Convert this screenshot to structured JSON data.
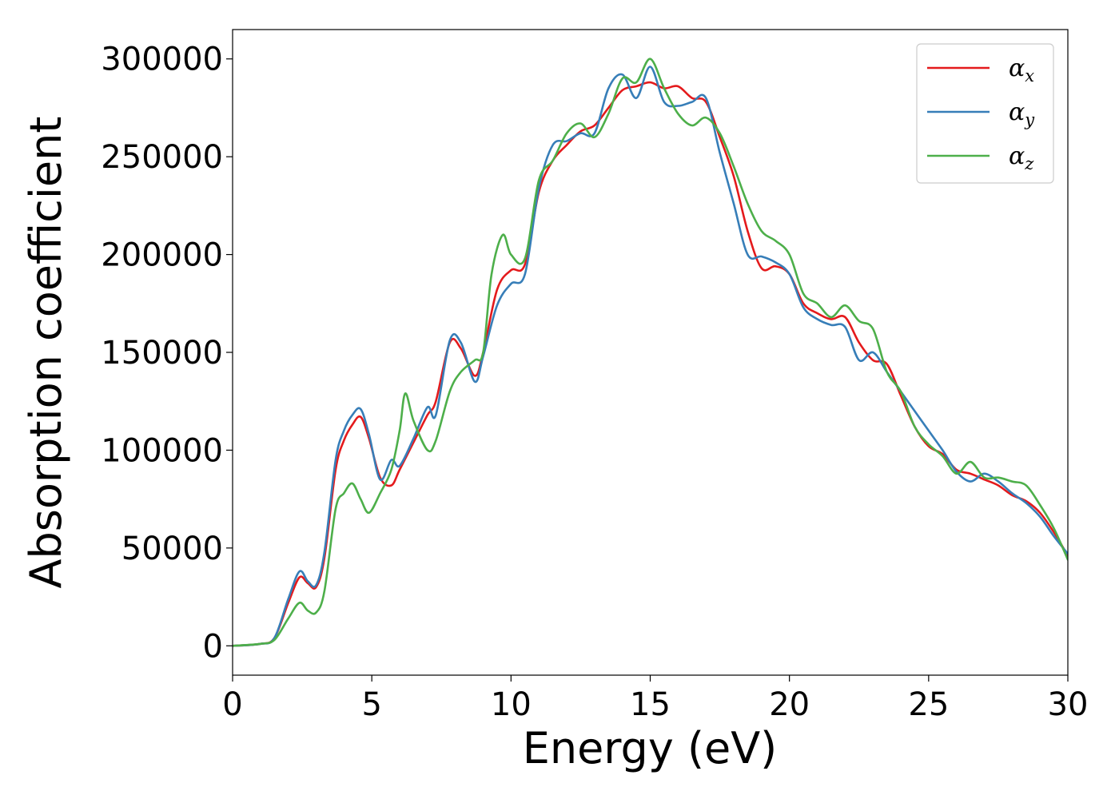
{
  "chart_data": {
    "type": "line",
    "title": "",
    "xlabel": "Energy (eV)",
    "ylabel": "Absorption coefficient",
    "xlim": [
      0,
      30
    ],
    "ylim": [
      -15000,
      315000
    ],
    "xticks": [
      0,
      5,
      10,
      15,
      20,
      25,
      30
    ],
    "yticks": [
      0,
      50000,
      100000,
      150000,
      200000,
      250000,
      300000
    ],
    "grid": false,
    "legend_position": "top-right",
    "series": [
      {
        "name": "αx",
        "symbol": "α",
        "subscript": "x",
        "color": "#e41a1c",
        "x": [
          0,
          1.0,
          1.5,
          2.0,
          2.4,
          2.7,
          3.0,
          3.3,
          3.7,
          4.0,
          4.3,
          4.6,
          4.9,
          5.3,
          5.7,
          6.0,
          6.5,
          7.0,
          7.3,
          7.8,
          8.2,
          8.7,
          9.0,
          9.5,
          10.0,
          10.5,
          11.0,
          11.5,
          12.0,
          12.5,
          13.0,
          13.5,
          14.0,
          14.5,
          15.0,
          15.5,
          16.0,
          16.5,
          17.0,
          17.5,
          18.0,
          18.5,
          19.0,
          19.5,
          20.0,
          20.5,
          21.0,
          21.5,
          22.0,
          22.5,
          23.0,
          23.5,
          24.0,
          24.5,
          25.0,
          25.5,
          26.0,
          26.5,
          27.0,
          27.5,
          28.0,
          28.5,
          29.0,
          29.5,
          30.0
        ],
        "y": [
          0,
          1000,
          4000,
          22000,
          35000,
          32000,
          30000,
          45000,
          90000,
          105000,
          113000,
          117000,
          106000,
          86000,
          82000,
          90000,
          104000,
          118000,
          125000,
          155000,
          152000,
          138000,
          150000,
          182000,
          192000,
          195000,
          232000,
          248000,
          256000,
          263000,
          266000,
          275000,
          284000,
          286000,
          288000,
          285000,
          286000,
          280000,
          278000,
          260000,
          240000,
          212000,
          193000,
          194000,
          190000,
          175000,
          170000,
          167000,
          168000,
          155000,
          146000,
          144000,
          128000,
          112000,
          102000,
          98000,
          90000,
          88000,
          85000,
          82000,
          77000,
          74000,
          68000,
          58000,
          46000
        ]
      },
      {
        "name": "αy",
        "symbol": "α",
        "subscript": "y",
        "color": "#377eb8",
        "x": [
          0,
          1.0,
          1.5,
          2.0,
          2.4,
          2.7,
          3.0,
          3.3,
          3.7,
          4.0,
          4.3,
          4.6,
          4.9,
          5.3,
          5.7,
          6.0,
          6.5,
          7.0,
          7.3,
          7.8,
          8.2,
          8.7,
          9.0,
          9.5,
          10.0,
          10.5,
          11.0,
          11.5,
          12.0,
          12.5,
          13.0,
          13.5,
          14.0,
          14.5,
          15.0,
          15.5,
          16.0,
          16.5,
          17.0,
          17.5,
          18.0,
          18.5,
          19.0,
          19.5,
          20.0,
          20.5,
          21.0,
          21.5,
          22.0,
          22.5,
          23.0,
          23.5,
          24.0,
          24.5,
          25.0,
          25.5,
          26.0,
          26.5,
          27.0,
          27.5,
          28.0,
          28.5,
          29.0,
          29.5,
          30.0
        ],
        "y": [
          0,
          1000,
          4000,
          24000,
          38000,
          33000,
          31000,
          48000,
          95000,
          110000,
          118000,
          121000,
          108000,
          85000,
          95000,
          92000,
          106000,
          122000,
          118000,
          156000,
          155000,
          135000,
          148000,
          174000,
          185000,
          190000,
          234000,
          256000,
          258000,
          262000,
          262000,
          285000,
          292000,
          280000,
          296000,
          278000,
          276000,
          278000,
          280000,
          252000,
          226000,
          200000,
          199000,
          196000,
          190000,
          173000,
          167000,
          164000,
          163000,
          146000,
          150000,
          140000,
          130000,
          120000,
          110000,
          100000,
          89000,
          84000,
          88000,
          84000,
          78000,
          73000,
          66000,
          56000,
          47000
        ]
      },
      {
        "name": "αz",
        "symbol": "α",
        "subscript": "z",
        "color": "#4daf4a",
        "x": [
          0,
          1.0,
          1.5,
          2.0,
          2.4,
          2.7,
          3.0,
          3.3,
          3.7,
          4.0,
          4.3,
          4.6,
          4.9,
          5.3,
          5.7,
          6.0,
          6.2,
          6.5,
          7.0,
          7.3,
          7.8,
          8.2,
          8.7,
          9.0,
          9.3,
          9.7,
          10.0,
          10.5,
          11.0,
          11.5,
          12.0,
          12.5,
          13.0,
          13.5,
          14.0,
          14.5,
          15.0,
          15.5,
          16.0,
          16.5,
          17.0,
          17.5,
          18.0,
          18.5,
          19.0,
          19.5,
          20.0,
          20.5,
          21.0,
          21.5,
          22.0,
          22.5,
          23.0,
          23.5,
          24.0,
          24.5,
          25.0,
          25.5,
          26.0,
          26.5,
          27.0,
          27.5,
          28.0,
          28.5,
          29.0,
          29.5,
          30.0
        ],
        "y": [
          0,
          1000,
          3000,
          14000,
          22000,
          18000,
          17000,
          28000,
          70000,
          78000,
          83000,
          75000,
          68000,
          78000,
          90000,
          110000,
          129000,
          115000,
          100000,
          105000,
          130000,
          140000,
          146000,
          150000,
          190000,
          210000,
          200000,
          198000,
          238000,
          248000,
          262000,
          267000,
          260000,
          272000,
          290000,
          288000,
          300000,
          285000,
          272000,
          266000,
          270000,
          262000,
          245000,
          226000,
          212000,
          207000,
          200000,
          180000,
          175000,
          168000,
          174000,
          166000,
          162000,
          140000,
          130000,
          112000,
          103000,
          97000,
          88000,
          94000,
          86000,
          86000,
          84000,
          82000,
          72000,
          60000,
          44000
        ]
      }
    ]
  }
}
